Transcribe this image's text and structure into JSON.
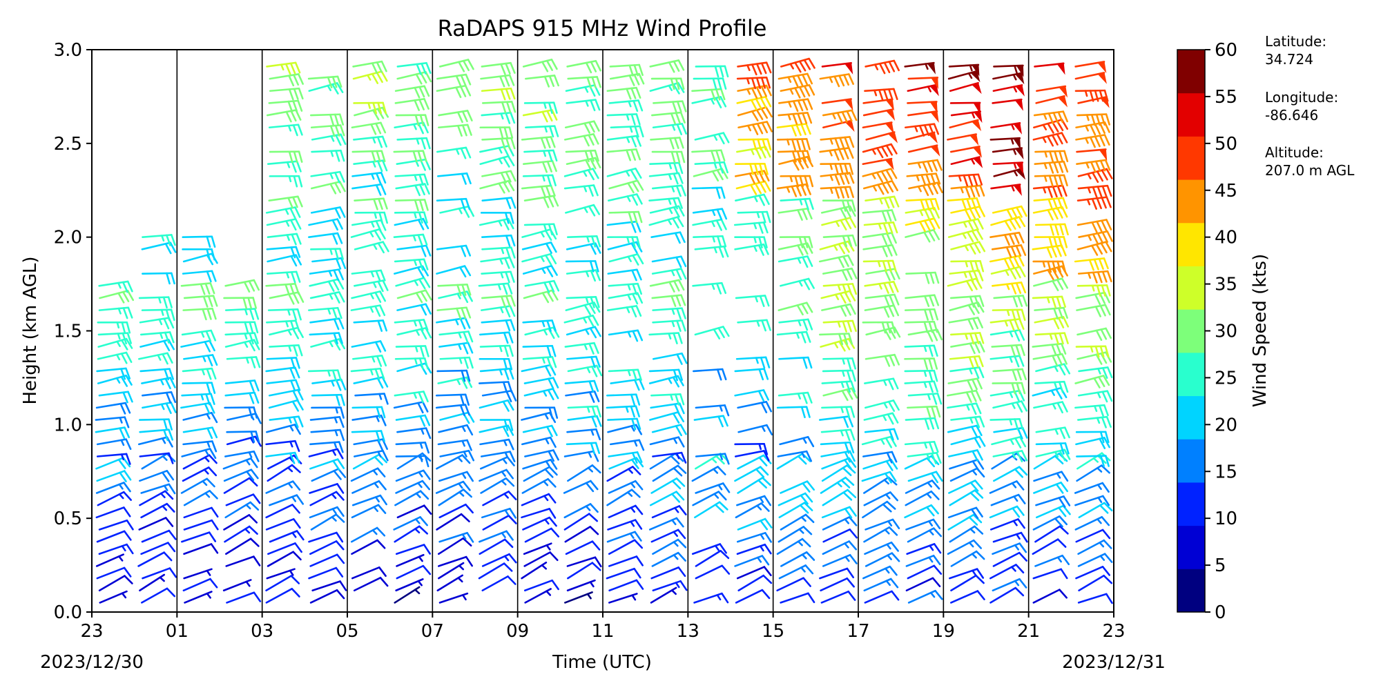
{
  "chart_data": {
    "type": "wind_barb_profile",
    "title": "RaDAPS 915 MHz Wind Profile",
    "xlabel": "Time (UTC)",
    "ylabel": "Height (km AGL)",
    "x_tick_labels": [
      "23",
      "01",
      "03",
      "05",
      "07",
      "09",
      "11",
      "13",
      "15",
      "17",
      "19",
      "21",
      "23"
    ],
    "x_date_left": "2023/12/30",
    "x_date_right": "2023/12/31",
    "y_tick_labels": [
      "0.0",
      "0.5",
      "1.0",
      "1.5",
      "2.0",
      "2.5",
      "3.0"
    ],
    "xlim_hours_utc": [
      23,
      47
    ],
    "ylim_km": [
      0.0,
      3.0
    ],
    "vertical_grid_hours_utc": [
      25,
      27,
      29,
      31,
      33,
      35,
      37,
      39,
      41,
      43,
      45
    ],
    "profile_times_utc": [
      "23:30",
      "00:30",
      "01:30",
      "02:30",
      "03:30",
      "04:30",
      "05:30",
      "06:30",
      "07:30",
      "08:30",
      "09:30",
      "10:30",
      "11:30",
      "12:30",
      "13:30",
      "14:30",
      "15:30",
      "16:30",
      "17:30",
      "18:30",
      "19:30",
      "20:30",
      "21:30",
      "22:30"
    ],
    "colorbar": {
      "label": "Wind Speed (kts)",
      "tick_labels": [
        "0",
        "5",
        "10",
        "15",
        "20",
        "25",
        "30",
        "35",
        "40",
        "45",
        "50",
        "55",
        "60"
      ],
      "range": [
        0,
        60
      ],
      "colors": [
        "#000080",
        "#0000d4",
        "#0022ff",
        "#0080ff",
        "#00d4ff",
        "#29ffce",
        "#7dff7a",
        "#ceff29",
        "#ffe600",
        "#ff9400",
        "#ff3800",
        "#e30000",
        "#800000"
      ]
    },
    "site_info": {
      "lat_label": "Latitude:",
      "lat_value": "34.724",
      "lon_label": "Longitude:",
      "lon_value": "-86.646",
      "alt_label": "Altitude:",
      "alt_value": "207.0 m AGL"
    },
    "wind_barbs_approx": {
      "note_units": "speed in kts, height in km AGL; values are approximate readings",
      "speed_by_layer": [
        {
          "height_range_km": [
            0.0,
            0.8
          ],
          "typical_speed_kts": [
            5,
            15
          ]
        },
        {
          "height_range_km": [
            0.8,
            1.8
          ],
          "typical_speed_kts": [
            15,
            30
          ]
        },
        {
          "height_range_km": [
            1.8,
            3.0
          ],
          "typical_speed_kts": [
            20,
            45
          ]
        }
      ],
      "strongest_speed_kts": 55,
      "strongest_time_range_utc": [
        "15:30",
        "20:30"
      ],
      "strongest_height_range_km": [
        2.5,
        3.0
      ]
    }
  }
}
